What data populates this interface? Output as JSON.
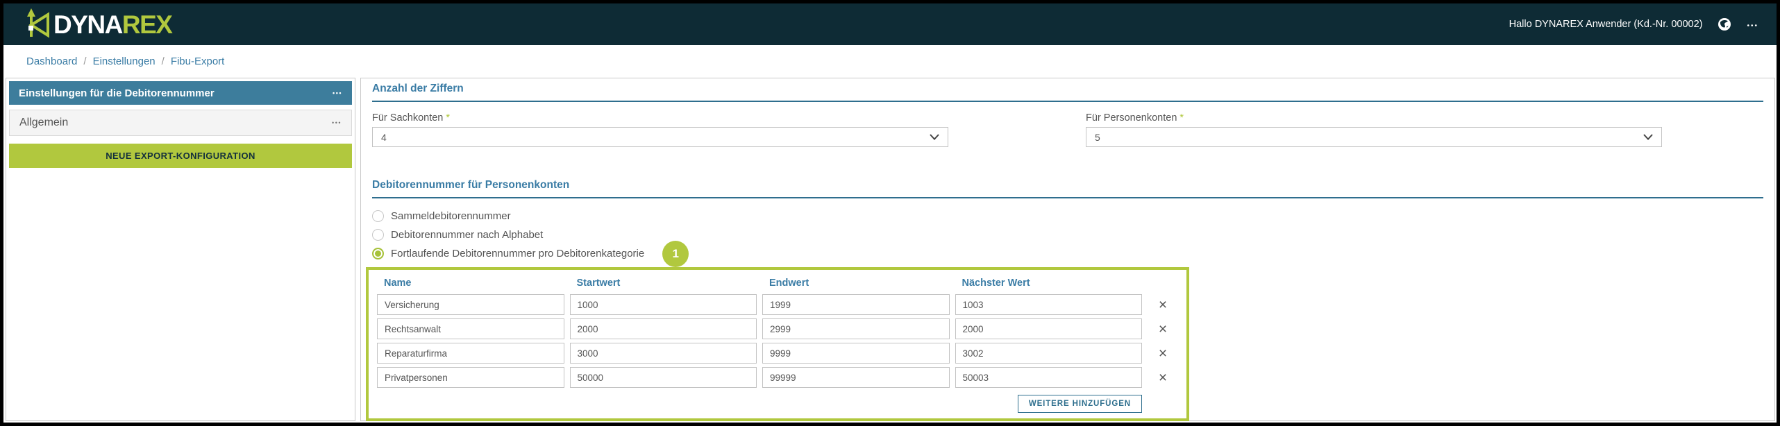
{
  "header": {
    "logo": {
      "part1": "DYNA",
      "part2": "REX"
    },
    "greeting": "Hallo DYNAREX Anwender (Kd.-Nr. 00002)"
  },
  "icons": {
    "ellipsis": "•••",
    "delete": "×"
  },
  "breadcrumb": {
    "items": [
      "Dashboard",
      "Einstellungen",
      "Fibu-Export"
    ],
    "separator": "/"
  },
  "sidebar": {
    "header": {
      "label": "Einstellungen für die Debitorennummer"
    },
    "items": [
      {
        "label": "Allgemein"
      }
    ],
    "new_export_button": "NEUE EXPORT-KONFIGURATION"
  },
  "main": {
    "digits": {
      "title": "Anzahl der Ziffern",
      "fields": [
        {
          "label": "Für Sachkonten",
          "required": "*",
          "value": "4"
        },
        {
          "label": "Für Personenkonten",
          "required": "*",
          "value": "5"
        }
      ]
    },
    "debtor": {
      "title": "Debitorennummer für Personenkonten",
      "options": [
        {
          "label": "Sammeldebitorennummer",
          "selected": false
        },
        {
          "label": "Debitorennummer nach Alphabet",
          "selected": false
        },
        {
          "label": "Fortlaufende Debitorennummer pro Debitorenkategorie",
          "selected": true
        }
      ],
      "badge": "1",
      "table": {
        "columns": [
          "Name",
          "Startwert",
          "Endwert",
          "Nächster Wert"
        ],
        "rows": [
          {
            "name": "Versicherung",
            "start": "1000",
            "end": "1999",
            "next": "1003"
          },
          {
            "name": "Rechtsanwalt",
            "start": "2000",
            "end": "2999",
            "next": "2000"
          },
          {
            "name": "Reparaturfirma",
            "start": "3000",
            "end": "9999",
            "next": "3002"
          },
          {
            "name": "Privatpersonen",
            "start": "50000",
            "end": "99999",
            "next": "50003"
          }
        ],
        "add_button": "WEITERE HINZUFÜGEN"
      }
    }
  },
  "colors": {
    "brand_dark": "#0e2b35",
    "accent_green": "#b1c83e",
    "link_blue": "#3a7ca5",
    "sidebar_blue": "#3d7d9c",
    "button_blue": "#2d6e8d"
  }
}
